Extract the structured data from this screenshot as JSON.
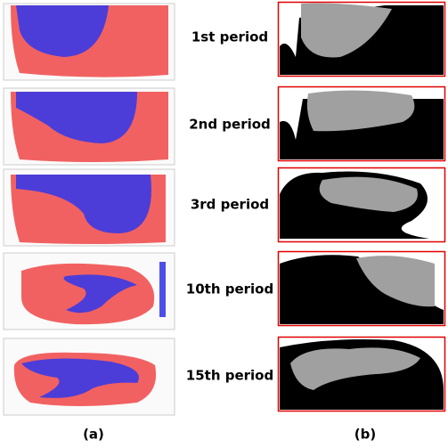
{
  "panels": [
    {
      "label": "1st period"
    },
    {
      "label": "2nd period"
    },
    {
      "label": "3rd period"
    },
    {
      "label": "10th period"
    },
    {
      "label": "15th period"
    }
  ],
  "captions": {
    "left": "(a)",
    "right": "(b)"
  }
}
